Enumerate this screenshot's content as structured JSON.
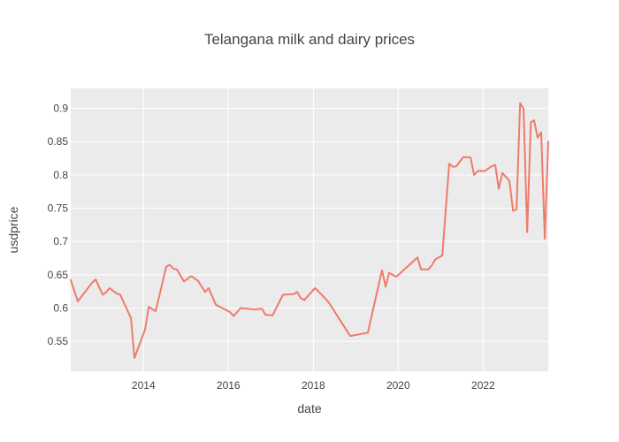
{
  "chart_data": {
    "type": "line",
    "title": "Telangana milk and dairy prices",
    "xlabel": "date",
    "ylabel": "usdprice",
    "xlim": [
      "2012-04-15",
      "2023-07-15"
    ],
    "ylim": [
      0.505,
      0.93
    ],
    "grid": true,
    "legend": "none",
    "colors": {
      "line": "#ef7b6c",
      "plot_background": "#ebebeb",
      "grid": "#ffffff",
      "text": "#444444"
    },
    "x_ticks": [
      {
        "value": "2014-01-01",
        "label": "2014"
      },
      {
        "value": "2016-01-01",
        "label": "2016"
      },
      {
        "value": "2018-01-01",
        "label": "2018"
      },
      {
        "value": "2020-01-01",
        "label": "2020"
      },
      {
        "value": "2022-01-01",
        "label": "2022"
      }
    ],
    "y_ticks": [
      {
        "value": 0.55,
        "label": "0.55"
      },
      {
        "value": 0.6,
        "label": "0.6"
      },
      {
        "value": 0.65,
        "label": "0.65"
      },
      {
        "value": 0.7,
        "label": "0.7"
      },
      {
        "value": 0.75,
        "label": "0.75"
      },
      {
        "value": 0.8,
        "label": "0.8"
      },
      {
        "value": 0.85,
        "label": "0.85"
      },
      {
        "value": 0.9,
        "label": "0.9"
      }
    ],
    "series": [
      {
        "x": [
          "2012-04-15",
          "2012-06-15",
          "2012-08-15",
          "2012-10-15",
          "2012-11-15",
          "2013-01-15",
          "2013-02-15",
          "2013-03-15",
          "2013-05-15",
          "2013-06-15",
          "2013-09-15",
          "2013-10-15",
          "2014-01-15",
          "2014-02-15",
          "2014-04-15",
          "2014-07-15",
          "2014-08-15",
          "2014-09-15",
          "2014-10-15",
          "2014-12-15",
          "2015-02-15",
          "2015-04-15",
          "2015-06-15",
          "2015-07-15",
          "2015-09-15",
          "2016-01-15",
          "2016-02-15",
          "2016-04-15",
          "2016-08-15",
          "2016-10-15",
          "2016-11-15",
          "2017-01-15",
          "2017-04-15",
          "2017-07-15",
          "2017-08-15",
          "2017-09-15",
          "2017-10-15",
          "2018-01-15",
          "2018-03-15",
          "2018-05-15",
          "2018-08-15",
          "2018-11-15",
          "2019-04-15",
          "2019-08-15",
          "2019-09-15",
          "2019-10-15",
          "2019-12-15",
          "2020-06-15",
          "2020-07-15",
          "2020-09-15",
          "2020-10-15",
          "2020-11-15",
          "2021-01-15",
          "2021-03-15",
          "2021-04-15",
          "2021-05-15",
          "2021-07-15",
          "2021-09-15",
          "2021-10-15",
          "2021-11-15",
          "2022-01-15",
          "2022-03-15",
          "2022-04-15",
          "2022-05-15",
          "2022-06-15",
          "2022-08-15",
          "2022-09-15",
          "2022-10-15",
          "2022-11-15",
          "2022-12-15",
          "2023-01-15",
          "2023-02-15",
          "2023-03-15",
          "2023-04-15",
          "2023-05-15",
          "2023-06-15",
          "2023-07-15"
        ],
        "y": [
          0.642,
          0.61,
          0.624,
          0.638,
          0.643,
          0.62,
          0.624,
          0.63,
          0.622,
          0.62,
          0.585,
          0.525,
          0.568,
          0.602,
          0.595,
          0.662,
          0.665,
          0.659,
          0.658,
          0.64,
          0.648,
          0.641,
          0.624,
          0.63,
          0.605,
          0.594,
          0.588,
          0.6,
          0.598,
          0.599,
          0.59,
          0.589,
          0.62,
          0.621,
          0.624,
          0.615,
          0.612,
          0.63,
          0.62,
          0.608,
          0.583,
          0.558,
          0.563,
          0.657,
          0.632,
          0.653,
          0.647,
          0.676,
          0.658,
          0.658,
          0.664,
          0.673,
          0.679,
          0.817,
          0.812,
          0.813,
          0.827,
          0.826,
          0.8,
          0.806,
          0.806,
          0.813,
          0.815,
          0.779,
          0.803,
          0.791,
          0.746,
          0.748,
          0.908,
          0.899,
          0.714,
          0.879,
          0.882,
          0.856,
          0.864,
          0.704,
          0.85
        ]
      }
    ]
  }
}
